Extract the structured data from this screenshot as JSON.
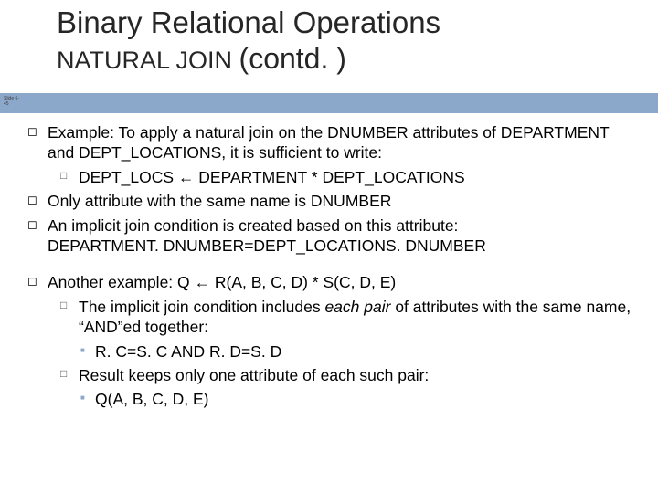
{
  "title": "Binary Relational Operations",
  "subtitle_a": "NATURAL JOIN ",
  "subtitle_b": "(contd. )",
  "slide_label_1": "Slide 6-",
  "slide_label_2": "45",
  "accent_color": "#8ba7c9",
  "bullets": {
    "p1": "Example: To apply a natural join on the DNUMBER attributes of DEPARTMENT and DEPT_LOCATIONS, it is sufficient to write:",
    "p1a": "DEPT_LOCS ← DEPARTMENT * DEPT_LOCATIONS",
    "p2": "Only attribute with the same name is DNUMBER",
    "p3": "An implicit join condition is created based on this attribute:",
    "p3x": "DEPARTMENT. DNUMBER=DEPT_LOCATIONS. DNUMBER",
    "p4": "Another example: Q ← R(A, B, C, D) * S(C, D, E)",
    "p4a_pre": "The implicit join condition includes ",
    "p4a_em": "each pair",
    "p4a_post": " of attributes with the same name, “AND”ed together:",
    "p4a1": "R. C=S. C AND R. D=S. D",
    "p4b": "Result keeps only one attribute of each such pair:",
    "p4b1": "Q(A, B, C, D, E)"
  },
  "markers": {
    "l1": "◻",
    "l2": "□",
    "l3": "■"
  }
}
